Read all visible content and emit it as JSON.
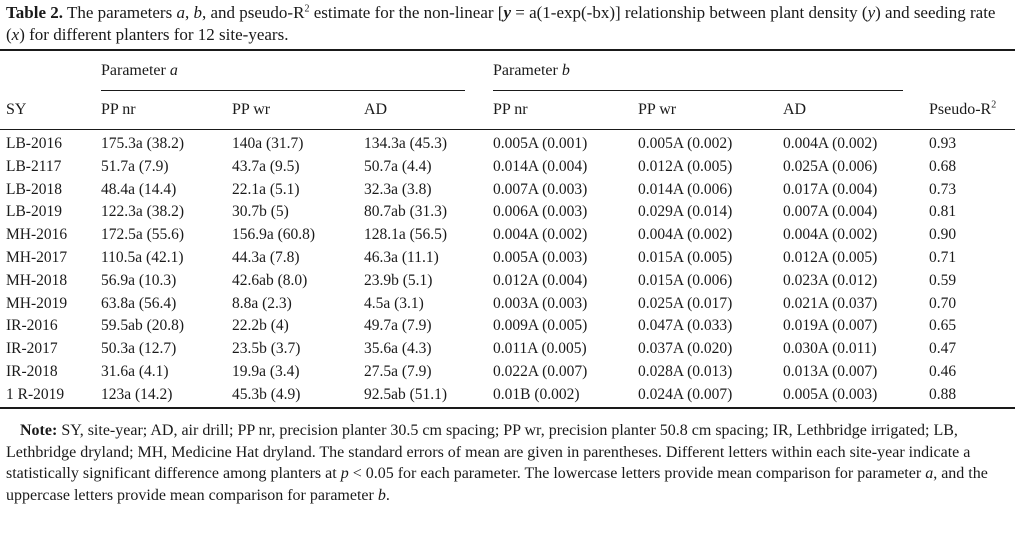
{
  "caption": {
    "label": "Table 2.",
    "text_1": " The parameters ",
    "a": "a",
    "sep_1": ", ",
    "b": "b",
    "text_2": ", and pseudo-R",
    "sup_2": "2",
    "text_3": " estimate for the non-linear [",
    "y_eq": "y",
    "eq_rest": " = a(1-exp(-bx)] relationship between plant density (",
    "y_var": "y",
    "text_4": ") and seeding rate (",
    "x_var": "x",
    "text_5": ") for different planters for 12 site-years."
  },
  "table": {
    "group_a_label": "Parameter ",
    "group_a_sym": "a",
    "group_b_label": "Parameter ",
    "group_b_sym": "b",
    "columns": [
      "SY",
      "PP nr",
      "PP wr",
      "AD",
      "PP nr",
      "PP wr",
      "AD",
      "Pseudo-R"
    ],
    "pseudo_sup": "2",
    "rows": [
      [
        "LB-2016",
        "175.3a (38.2)",
        "140a (31.7)",
        "134.3a (45.3)",
        "0.005A (0.001)",
        "0.005A (0.002)",
        "0.004A (0.002)",
        "0.93"
      ],
      [
        "LB-2117",
        "51.7a (7.9)",
        "43.7a (9.5)",
        "50.7a (4.4)",
        "0.014A (0.004)",
        "0.012A (0.005)",
        "0.025A (0.006)",
        "0.68"
      ],
      [
        "LB-2018",
        "48.4a (14.4)",
        "22.1a (5.1)",
        "32.3a (3.8)",
        "0.007A (0.003)",
        "0.014A (0.006)",
        "0.017A (0.004)",
        "0.73"
      ],
      [
        "LB-2019",
        "122.3a (38.2)",
        "30.7b (5)",
        "80.7ab (31.3)",
        "0.006A (0.003)",
        "0.029A (0.014)",
        "0.007A (0.004)",
        "0.81"
      ],
      [
        "MH-2016",
        "172.5a (55.6)",
        "156.9a (60.8)",
        "128.1a (56.5)",
        "0.004A (0.002)",
        "0.004A (0.002)",
        "0.004A (0.002)",
        "0.90"
      ],
      [
        "MH-2017",
        "110.5a (42.1)",
        "44.3a (7.8)",
        "46.3a (11.1)",
        "0.005A (0.003)",
        "0.015A (0.005)",
        "0.012A (0.005)",
        "0.71"
      ],
      [
        "MH-2018",
        "56.9a (10.3)",
        "42.6ab (8.0)",
        "23.9b (5.1)",
        "0.012A (0.004)",
        "0.015A (0.006)",
        "0.023A (0.012)",
        "0.59"
      ],
      [
        "MH-2019",
        "63.8a (56.4)",
        "8.8a (2.3)",
        "4.5a (3.1)",
        "0.003A (0.003)",
        "0.025A (0.017)",
        "0.021A (0.037)",
        "0.70"
      ],
      [
        "IR-2016",
        "59.5ab (20.8)",
        "22.2b (4)",
        "49.7a (7.9)",
        "0.009A (0.005)",
        "0.047A (0.033)",
        "0.019A (0.007)",
        "0.65"
      ],
      [
        "IR-2017",
        "50.3a (12.7)",
        "23.5b (3.7)",
        "35.6a (4.3)",
        "0.011A (0.005)",
        "0.037A (0.020)",
        "0.030A (0.011)",
        "0.47"
      ],
      [
        "IR-2018",
        "31.6a (4.1)",
        "19.9a (3.4)",
        "27.5a (7.9)",
        "0.022A (0.007)",
        "0.028A (0.013)",
        "0.013A (0.007)",
        "0.46"
      ],
      [
        "1 R-2019",
        "123a (14.2)",
        "45.3b (4.9)",
        "92.5ab (51.1)",
        "0.01B (0.002)",
        "0.024A (0.007)",
        "0.005A (0.003)",
        "0.88"
      ]
    ]
  },
  "note": {
    "label": "Note:",
    "text_1": " SY, site-year; AD, air drill; PP nr, precision planter 30.5 cm spacing; PP wr, precision planter 50.8 cm spacing; IR, Lethbridge irrigated; LB, Lethbridge dryland; MH, Medicine Hat dryland. The standard errors of mean are given in parentheses. Different letters within each site-year indicate a statistically significant difference among planters at ",
    "p": "p",
    "text_2": " < 0.05 for each parameter. The lowercase letters provide mean comparison for parameter ",
    "a": "a",
    "text_3": ", and the uppercase letters provide mean comparison for parameter ",
    "b": "b",
    "text_4": "."
  }
}
